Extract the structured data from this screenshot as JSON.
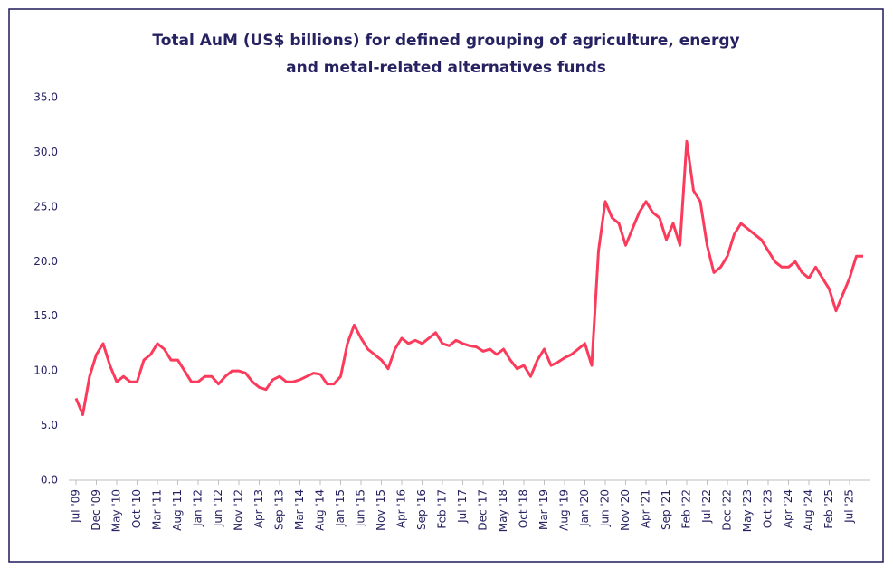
{
  "chart_data": {
    "type": "line",
    "title": [
      "Total AuM (US$ billions) for defined grouping of agriculture, energy",
      "and metal-related alternatives funds"
    ],
    "categories": [
      "Jul '09",
      null,
      null,
      "Dec '09",
      null,
      null,
      "May '10",
      null,
      null,
      "Oct '10",
      null,
      null,
      "Mar '11",
      null,
      null,
      "Aug '11",
      null,
      null,
      "Jan '12",
      null,
      null,
      "Jun '12",
      null,
      null,
      "Nov '12",
      null,
      null,
      "Apr '13",
      null,
      null,
      "Sep '13",
      null,
      null,
      "Mar '14",
      null,
      null,
      "Aug '14",
      null,
      null,
      "Jan '15",
      null,
      null,
      "Jun '15",
      null,
      null,
      "Nov '15",
      null,
      null,
      "Apr '16",
      null,
      null,
      "Sep '16",
      null,
      null,
      "Feb '17",
      null,
      null,
      "Jul '17",
      null,
      null,
      "Dec '17",
      null,
      null,
      "May '18",
      null,
      null,
      "Oct '18",
      null,
      null,
      "Mar '19",
      null,
      null,
      "Aug '19",
      null,
      null,
      "Jan '20",
      null,
      null,
      "Jun '20",
      null,
      null,
      "Nov '20",
      null,
      null,
      "Apr '21",
      null,
      null,
      "Sep '21",
      null,
      null,
      "Feb '22",
      null,
      null,
      "Jul '22",
      null,
      null,
      "Dec '22",
      null,
      null,
      "May '23",
      null,
      null,
      "Oct '23",
      null,
      null,
      "Apr '24",
      null,
      null,
      "Aug '24",
      null,
      null,
      "Feb '25",
      null,
      null,
      "Jul '25",
      null,
      null
    ],
    "series": [
      {
        "name": "Total AuM",
        "color": "#fb3b5c",
        "values": [
          7.5,
          6.0,
          9.5,
          11.5,
          12.5,
          10.5,
          9.0,
          9.5,
          9.0,
          9.0,
          11.0,
          11.5,
          12.5,
          12.0,
          11.0,
          11.0,
          10.0,
          9.0,
          9.0,
          9.5,
          9.5,
          8.8,
          9.5,
          10.0,
          10.0,
          9.8,
          9.0,
          8.5,
          8.3,
          9.2,
          9.5,
          9.0,
          9.0,
          9.2,
          9.5,
          9.8,
          9.7,
          8.8,
          8.8,
          9.5,
          12.5,
          14.2,
          13.0,
          12.0,
          11.5,
          11.0,
          10.2,
          12.0,
          13.0,
          12.5,
          12.8,
          12.5,
          13.0,
          13.5,
          12.5,
          12.3,
          12.8,
          12.5,
          12.3,
          12.2,
          11.8,
          12.0,
          11.5,
          12.0,
          11.0,
          10.2,
          10.5,
          9.5,
          11.0,
          12.0,
          10.5,
          10.8,
          11.2,
          11.5,
          12.0,
          12.5,
          10.5,
          21.0,
          25.5,
          24.0,
          23.5,
          21.5,
          23.0,
          24.5,
          25.5,
          24.5,
          24.0,
          22.0,
          23.5,
          21.5,
          31.0,
          26.5,
          25.5,
          21.5,
          19.0,
          19.5,
          20.5,
          22.5,
          23.5,
          23.0,
          22.5,
          22.0,
          21.0,
          20.0,
          19.5,
          19.5,
          20.0,
          19.0,
          18.5,
          19.5,
          18.5,
          17.5,
          15.5,
          17.0,
          18.5,
          20.5,
          20.5
        ]
      }
    ],
    "ylim": [
      0,
      35
    ],
    "yticks": [
      {
        "value": 0,
        "label": "0.0"
      },
      {
        "value": 5,
        "label": "5.0"
      },
      {
        "value": 10,
        "label": "10.0"
      },
      {
        "value": 15,
        "label": "15.0"
      },
      {
        "value": 20,
        "label": "20.0"
      },
      {
        "value": 25,
        "label": "25.0"
      },
      {
        "value": 30,
        "label": "30.0"
      },
      {
        "value": 35,
        "label": "35.0"
      }
    ],
    "grid": false
  }
}
